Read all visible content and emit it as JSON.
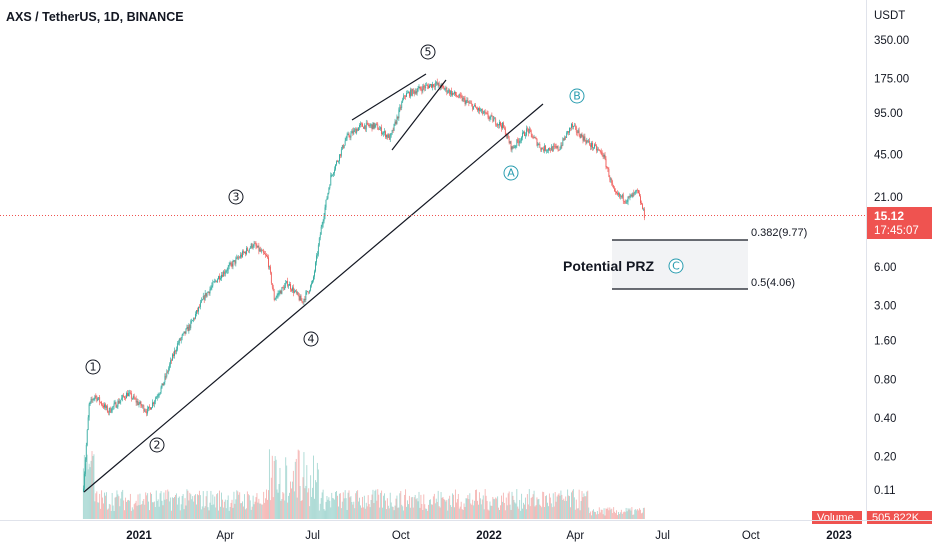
{
  "header": {
    "title": "AXS / TetherUS, 1D, BINANCE"
  },
  "chart_data": {
    "type": "candlestick",
    "title": "AXS / TetherUS, 1D, BINANCE",
    "y_unit": "USDT",
    "y_scale": "log",
    "y_ticks": [
      "350.00",
      "175.00",
      "95.00",
      "45.00",
      "21.00",
      "6.00",
      "3.00",
      "1.60",
      "0.80",
      "0.40",
      "0.20",
      "0.11"
    ],
    "x_ticks": [
      "2021",
      "Apr",
      "Jul",
      "Oct",
      "2022",
      "Apr",
      "Jul",
      "Oct",
      "2023"
    ],
    "last_price": "15.12",
    "countdown": "17:45:07",
    "volume_label": "Volume",
    "volume_value": "505.822K",
    "price_path": [
      {
        "date": "2020-11-04",
        "close": 0.12
      },
      {
        "date": "2020-11-10",
        "close": 0.5
      },
      {
        "date": "2020-11-16",
        "close": 0.6
      },
      {
        "date": "2020-11-30",
        "close": 0.45
      },
      {
        "date": "2020-12-20",
        "close": 0.62
      },
      {
        "date": "2021-01-10",
        "close": 0.45
      },
      {
        "date": "2021-01-25",
        "close": 0.7
      },
      {
        "date": "2021-02-10",
        "close": 1.5
      },
      {
        "date": "2021-02-25",
        "close": 2.2
      },
      {
        "date": "2021-03-10",
        "close": 3.5
      },
      {
        "date": "2021-03-25",
        "close": 5.0
      },
      {
        "date": "2021-04-10",
        "close": 6.5
      },
      {
        "date": "2021-04-30",
        "close": 9.0
      },
      {
        "date": "2021-05-15",
        "close": 7.0
      },
      {
        "date": "2021-05-22",
        "close": 3.4
      },
      {
        "date": "2021-06-05",
        "close": 4.5
      },
      {
        "date": "2021-06-20",
        "close": 3.2
      },
      {
        "date": "2021-07-01",
        "close": 4.5
      },
      {
        "date": "2021-07-10",
        "close": 12
      },
      {
        "date": "2021-07-20",
        "close": 30
      },
      {
        "date": "2021-08-05",
        "close": 60
      },
      {
        "date": "2021-08-20",
        "close": 75
      },
      {
        "date": "2021-09-05",
        "close": 75
      },
      {
        "date": "2021-09-20",
        "close": 60
      },
      {
        "date": "2021-10-05",
        "close": 130
      },
      {
        "date": "2021-10-25",
        "close": 150
      },
      {
        "date": "2021-11-06",
        "close": 160
      },
      {
        "date": "2021-11-20",
        "close": 140
      },
      {
        "date": "2021-12-05",
        "close": 120
      },
      {
        "date": "2021-12-25",
        "close": 95
      },
      {
        "date": "2022-01-15",
        "close": 75
      },
      {
        "date": "2022-01-25",
        "close": 50
      },
      {
        "date": "2022-02-10",
        "close": 70
      },
      {
        "date": "2022-02-25",
        "close": 50
      },
      {
        "date": "2022-03-15",
        "close": 50
      },
      {
        "date": "2022-03-28",
        "close": 75
      },
      {
        "date": "2022-04-15",
        "close": 55
      },
      {
        "date": "2022-04-30",
        "close": 45
      },
      {
        "date": "2022-05-12",
        "close": 22
      },
      {
        "date": "2022-05-25",
        "close": 20
      },
      {
        "date": "2022-06-05",
        "close": 23
      },
      {
        "date": "2022-06-12",
        "close": 15.12
      }
    ],
    "annotations": {
      "waves": [
        "1",
        "2",
        "3",
        "4",
        "5",
        "A",
        "B",
        "C"
      ],
      "fib_levels": [
        {
          "label": "0.382(9.77)",
          "value": 9.77
        },
        {
          "label": "0.5(4.06)",
          "value": 4.06
        }
      ],
      "zone_label": "Potential PRZ"
    }
  },
  "colors": {
    "up": "#26a69a",
    "down": "#ef5350",
    "wave_circle": "#131722",
    "wave_abc": "#2a9db0",
    "price_line": "#ef5350",
    "grid": "#f0f3fa"
  }
}
